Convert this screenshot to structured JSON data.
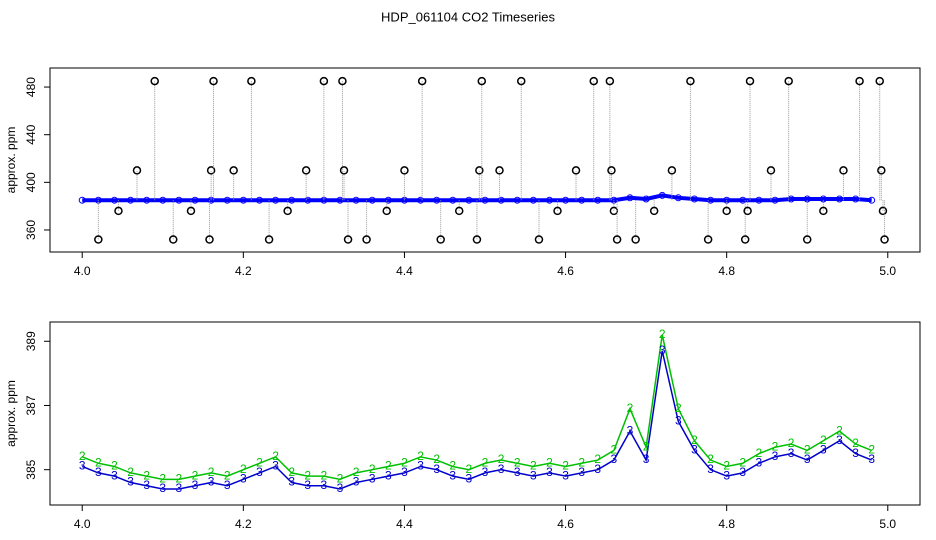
{
  "chart_data": {
    "title": "HDP_061104  CO2 Timeseries",
    "charts": [
      {
        "type": "scatter",
        "ylabel": "approx. ppm",
        "xlim": [
          3.96,
          5.04
        ],
        "ylim": [
          341.5,
          496
        ],
        "xticks": [
          {
            "value": 4.0,
            "label": "4.0"
          },
          4.2,
          4.4,
          4.6,
          4.8,
          {
            "value": 5.0,
            "label": "5.0"
          }
        ],
        "yticks": [
          360,
          400,
          440,
          480
        ],
        "series": [
          {
            "color": "#0000ff",
            "x": [
              4.0,
              4.02,
              4.04,
              4.06,
              4.08,
              4.1,
              4.12,
              4.14,
              4.16,
              4.18,
              4.2,
              4.22,
              4.24,
              4.26,
              4.28,
              4.3,
              4.32,
              4.34,
              4.36,
              4.38,
              4.4,
              4.42,
              4.44,
              4.46,
              4.48,
              4.5,
              4.52,
              4.54,
              4.56,
              4.58,
              4.6,
              4.62,
              4.64,
              4.66,
              4.68,
              4.7,
              4.72,
              4.74,
              4.76,
              4.78,
              4.8,
              4.82,
              4.84,
              4.86,
              4.88,
              4.9,
              4.92,
              4.94,
              4.96,
              4.98
            ],
            "values": [
              385,
              385,
              385,
              385,
              385,
              385,
              385,
              385,
              385,
              385,
              385,
              385,
              385,
              385,
              385,
              385,
              385,
              385,
              385,
              385,
              385,
              385,
              385,
              385,
              385,
              385,
              385,
              385,
              385,
              385,
              385,
              385,
              385,
              385,
              387,
              386,
              389,
              387,
              386,
              385,
              385,
              385,
              385,
              385,
              386,
              386,
              386,
              386,
              386,
              385
            ]
          },
          {
            "color": "#000000",
            "x": [
              4.02,
              4.045,
              4.068,
              4.09,
              4.113,
              4.135,
              4.158,
              4.16,
              4.163,
              4.188,
              4.21,
              4.232,
              4.255,
              4.278,
              4.3,
              4.323,
              4.325,
              4.33,
              4.353,
              4.378,
              4.4,
              4.422,
              4.445,
              4.468,
              4.49,
              4.493,
              4.496,
              4.518,
              4.545,
              4.567,
              4.59,
              4.613,
              4.635,
              4.655,
              4.657,
              4.66,
              4.664,
              4.687,
              4.71,
              4.732,
              4.755,
              4.777,
              4.8,
              4.823,
              4.826,
              4.829,
              4.855,
              4.877,
              4.9,
              4.92,
              4.945,
              4.965,
              4.99,
              4.992,
              4.994,
              4.996
            ],
            "values": [
              352,
              376,
              410,
              485,
              352,
              376,
              352,
              410,
              485,
              410,
              485,
              352,
              376,
              410,
              485,
              485,
              410,
              352,
              352,
              376,
              410,
              485,
              352,
              376,
              352,
              410,
              485,
              410,
              485,
              352,
              376,
              410,
              485,
              485,
              410,
              376,
              352,
              352,
              376,
              410,
              485,
              352,
              376,
              352,
              376,
              485,
              410,
              485,
              352,
              376,
              410,
              485,
              485,
              410,
              376,
              352
            ]
          }
        ]
      },
      {
        "type": "line",
        "ylabel": "approx. ppm",
        "xlim": [
          3.96,
          5.04
        ],
        "ylim": [
          383.9,
          389.6
        ],
        "xticks": [
          {
            "value": 4.0,
            "label": "4.0"
          },
          4.2,
          4.4,
          4.6,
          4.8,
          {
            "value": 5.0,
            "label": "5.0"
          }
        ],
        "yticks": [
          385,
          387,
          389
        ],
        "x": [
          4.0,
          4.02,
          4.04,
          4.06,
          4.08,
          4.1,
          4.12,
          4.14,
          4.16,
          4.18,
          4.2,
          4.22,
          4.24,
          4.26,
          4.28,
          4.3,
          4.32,
          4.34,
          4.36,
          4.38,
          4.4,
          4.42,
          4.44,
          4.46,
          4.48,
          4.5,
          4.52,
          4.54,
          4.56,
          4.58,
          4.6,
          4.62,
          4.64,
          4.66,
          4.68,
          4.7,
          4.72,
          4.74,
          4.76,
          4.78,
          4.8,
          4.82,
          4.84,
          4.86,
          4.88,
          4.9,
          4.92,
          4.94,
          4.96,
          4.98
        ],
        "series": [
          {
            "marker": "2",
            "color": "#00c000",
            "values": [
              385.4,
              385.2,
              385.1,
              384.9,
              384.8,
              384.7,
              384.7,
              384.8,
              384.9,
              384.8,
              385.0,
              385.2,
              385.4,
              384.9,
              384.8,
              384.8,
              384.7,
              384.9,
              385.0,
              385.1,
              385.2,
              385.4,
              385.3,
              385.1,
              385.0,
              385.2,
              385.3,
              385.2,
              385.1,
              385.2,
              385.1,
              385.2,
              385.3,
              385.6,
              386.9,
              385.7,
              389.2,
              386.9,
              385.9,
              385.3,
              385.1,
              385.2,
              385.5,
              385.7,
              385.8,
              385.6,
              385.9,
              386.2,
              385.8,
              385.6
            ]
          },
          {
            "marker": "3",
            "color": "#0000cc",
            "values": [
              385.1,
              384.9,
              384.8,
              384.6,
              384.5,
              384.4,
              384.4,
              384.5,
              384.6,
              384.5,
              384.7,
              384.9,
              385.1,
              384.6,
              384.5,
              384.5,
              384.4,
              384.6,
              384.7,
              384.8,
              384.9,
              385.1,
              385.0,
              384.8,
              384.7,
              384.9,
              385.0,
              384.9,
              384.8,
              384.9,
              384.8,
              384.9,
              385.0,
              385.3,
              386.2,
              385.3,
              388.7,
              386.5,
              385.6,
              385.0,
              384.8,
              384.9,
              385.2,
              385.4,
              385.5,
              385.3,
              385.6,
              385.9,
              385.5,
              385.3
            ]
          }
        ]
      }
    ]
  }
}
